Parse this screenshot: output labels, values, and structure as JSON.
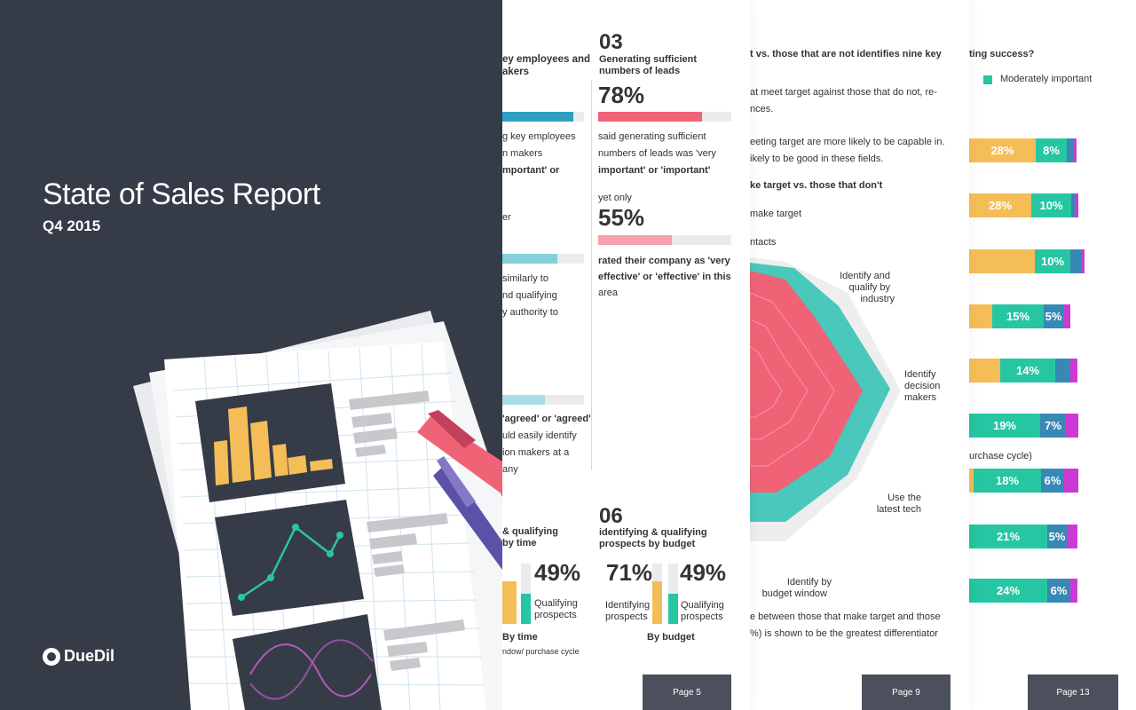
{
  "cover": {
    "title": "State of Sales Report",
    "subtitle": "Q4 2015",
    "brand": "DueDil"
  },
  "page5": {
    "left_heading": "ey employees and\nakers",
    "left_texts": [
      "g key employees",
      "n makers",
      "mportant' or",
      "er",
      "similarly to",
      "nd qualifying",
      "y authority to",
      "'agreed' or 'agreed'",
      "uld easily identify",
      "ion makers at a",
      "any"
    ],
    "sec03": {
      "number": "03",
      "heading_1": "Generating sufficient",
      "heading_2": "numbers of leads",
      "stat1": "78%",
      "stat1_value": 0.78,
      "text1": [
        "said generating sufficient",
        "numbers of leads was 'very",
        "important' or 'important'"
      ],
      "yet": "yet only",
      "stat2": "55%",
      "stat2_value": 0.55,
      "text2": [
        "rated their company as 'very",
        "effective' or 'effective' in this",
        "area"
      ]
    },
    "left_bottom": {
      "heading_1": "& qualifying",
      "heading_2": "by time",
      "stat": "49%",
      "label_1": "Qualifying",
      "label_2": "prospects",
      "caption": "By time",
      "caption_sub": "ndow/ purchase cycle"
    },
    "sec06": {
      "number": "06",
      "heading_1": "identifying & qualifying",
      "heading_2": "prospects by budget",
      "stat_a": "71%",
      "label_a_1": "Identifying",
      "label_a_2": "prospects",
      "stat_b": "49%",
      "label_b_1": "Qualifying",
      "label_b_2": "prospects",
      "caption": "By budget"
    },
    "page_label": "Page 5"
  },
  "page9": {
    "heading": "t vs. those that are not identifies nine key",
    "para1": [
      "at meet target against those that do not, re-",
      "nces."
    ],
    "para2": [
      "eeting target are more likely to be capable in.",
      "ikely to be good in these fields."
    ],
    "subheading": "ke target vs. those that don't",
    "legend_1": "make target",
    "legend_2": "ntacts",
    "radar_labels": {
      "industry_1": "Identify and",
      "industry_2": "qualify by",
      "industry_3": "industry",
      "decision_1": "Identify",
      "decision_2": "decision",
      "decision_3": "makers",
      "tech_1": "Use the",
      "tech_2": "latest tech",
      "budget_1": "Identify by",
      "budget_2": "budget window"
    },
    "footer": [
      "e between those that make target and those",
      "%) is shown to be the greatest differentiator"
    ],
    "page_label": "Page 9"
  },
  "page13": {
    "heading": "ting success?",
    "legend_moderate": "Moderately important",
    "middle_note": "urchase cycle)",
    "rows": [
      {
        "a": "28%",
        "b": "8%",
        "ann": [
          "2%",
          "1%"
        ]
      },
      {
        "a": "28%",
        "b": "10%",
        "ann": [
          "1%",
          "1%"
        ]
      },
      {
        "a": "",
        "b": "10%",
        "ann": [
          "3%",
          "1%"
        ]
      },
      {
        "a": "15%",
        "b": "5%",
        "ann": [
          "2%"
        ]
      },
      {
        "a": "14%",
        "b": "",
        "ann": [
          "4%",
          "2%"
        ]
      },
      {
        "a": "19%",
        "b": "7%",
        "ann": [
          "3%"
        ]
      },
      {
        "a": "18%",
        "b": "6%",
        "ann": [
          "3%"
        ]
      },
      {
        "a": "21%",
        "b": "5%",
        "ann": [
          "3%"
        ]
      },
      {
        "a": "24%",
        "b": "6%",
        "ann": [
          "2%"
        ]
      }
    ],
    "page_label": "Page 13"
  },
  "colors": {
    "dark": "#363b48",
    "teal": "#26c6a2",
    "blue": "#2f8fc0",
    "coral": "#f06377",
    "yellow": "#f4bd57",
    "magenta": "#cc3ad6",
    "steel": "#3789b4"
  }
}
